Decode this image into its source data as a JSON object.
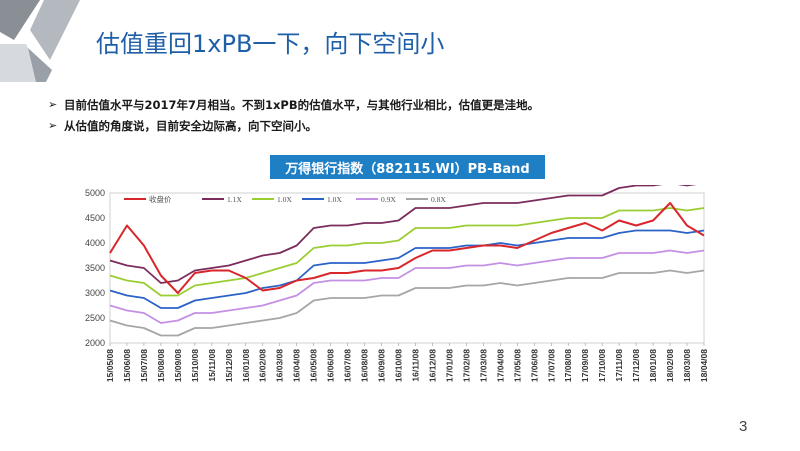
{
  "slide": {
    "title": "估值重回1xPB一下，向下空间小",
    "bullets": [
      "目前估值水平与2017年7月相当。不到1xPB的估值水平，与其他行业相比，估值更是洼地。",
      "从估值的角度说，目前安全边际高，向下空间小。"
    ],
    "chart_title": "万得银行指数（882115.WI）PB-Band",
    "page_number": "3"
  },
  "chart_data": {
    "type": "line",
    "title": "万得银行指数（882115.WI）PB-Band",
    "xlabel": "",
    "ylabel": "",
    "ylim": [
      2000,
      5000
    ],
    "yticks": [
      2000,
      2500,
      3000,
      3500,
      4000,
      4500,
      5000
    ],
    "grid": false,
    "legend_position": "top",
    "x": [
      "15/05/08",
      "15/06/08",
      "15/07/08",
      "15/08/08",
      "15/09/08",
      "15/10/08",
      "15/11/08",
      "15/12/08",
      "16/01/08",
      "16/02/08",
      "16/03/08",
      "16/04/08",
      "16/05/08",
      "16/06/08",
      "16/07/08",
      "16/08/08",
      "16/09/08",
      "16/10/08",
      "16/11/08",
      "16/12/08",
      "17/01/08",
      "17/02/08",
      "17/03/08",
      "17/04/08",
      "17/05/08",
      "17/06/08",
      "17/07/08",
      "17/08/08",
      "17/09/08",
      "17/10/08",
      "17/11/08",
      "17/12/08",
      "18/01/08",
      "18/02/08",
      "18/03/08",
      "18/04/08"
    ],
    "series": [
      {
        "name": "收盘价",
        "color": "#d9262b",
        "width": 2,
        "values": [
          3800,
          4350,
          3950,
          3350,
          3000,
          3400,
          3450,
          3450,
          3300,
          3050,
          3100,
          3250,
          3300,
          3400,
          3400,
          3450,
          3450,
          3500,
          3700,
          3850,
          3850,
          3900,
          3950,
          3950,
          3900,
          4050,
          4200,
          4300,
          4400,
          4250,
          4450,
          4350,
          4450,
          4800,
          4350,
          4150
        ]
      },
      {
        "name": "1.1X",
        "color": "#7b2c5c",
        "width": 1.8,
        "values": [
          3650,
          3550,
          3500,
          3200,
          3250,
          3450,
          3500,
          3550,
          3650,
          3750,
          3800,
          3950,
          4300,
          4350,
          4350,
          4400,
          4400,
          4450,
          4700,
          4700,
          4700,
          4750,
          4800,
          4800,
          4800,
          4850,
          4900,
          4950,
          4950,
          4950,
          5100,
          5150,
          5150,
          5200,
          5150,
          5200
        ]
      },
      {
        "name": "1.0X",
        "color": "#9acd32",
        "width": 1.8,
        "values": [
          3350,
          3250,
          3200,
          2950,
          2950,
          3150,
          3200,
          3250,
          3300,
          3400,
          3500,
          3600,
          3900,
          3950,
          3950,
          4000,
          4000,
          4050,
          4300,
          4300,
          4300,
          4350,
          4350,
          4350,
          4350,
          4400,
          4450,
          4500,
          4500,
          4500,
          4650,
          4650,
          4650,
          4700,
          4650,
          4700
        ]
      },
      {
        "name": "1.0X",
        "color": "#2b62c8",
        "width": 1.8,
        "values": [
          3050,
          2950,
          2900,
          2700,
          2700,
          2850,
          2900,
          2950,
          3000,
          3100,
          3150,
          3250,
          3550,
          3600,
          3600,
          3600,
          3650,
          3700,
          3900,
          3900,
          3900,
          3950,
          3950,
          4000,
          3950,
          4000,
          4050,
          4100,
          4100,
          4100,
          4200,
          4250,
          4250,
          4250,
          4200,
          4250
        ]
      },
      {
        "name": "0.9X",
        "color": "#c490e4",
        "width": 1.8,
        "values": [
          2750,
          2650,
          2600,
          2400,
          2450,
          2600,
          2600,
          2650,
          2700,
          2750,
          2850,
          2950,
          3200,
          3250,
          3250,
          3250,
          3300,
          3300,
          3500,
          3500,
          3500,
          3550,
          3550,
          3600,
          3550,
          3600,
          3650,
          3700,
          3700,
          3700,
          3800,
          3800,
          3800,
          3850,
          3800,
          3850
        ]
      },
      {
        "name": "0.8X",
        "color": "#a6a6a6",
        "width": 1.8,
        "values": [
          2450,
          2350,
          2300,
          2150,
          2150,
          2300,
          2300,
          2350,
          2400,
          2450,
          2500,
          2600,
          2850,
          2900,
          2900,
          2900,
          2950,
          2950,
          3100,
          3100,
          3100,
          3150,
          3150,
          3200,
          3150,
          3200,
          3250,
          3300,
          3300,
          3300,
          3400,
          3400,
          3400,
          3450,
          3400,
          3450
        ]
      }
    ]
  }
}
